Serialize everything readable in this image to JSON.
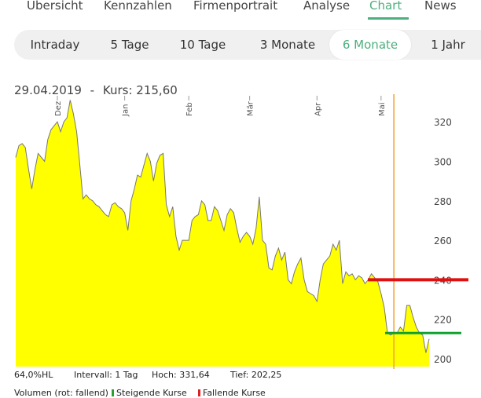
{
  "nav": {
    "tabs": [
      {
        "label": "Übersicht"
      },
      {
        "label": "Kennzahlen"
      },
      {
        "label": "Firmenportrait"
      },
      {
        "label": "Analyse"
      },
      {
        "label": "Chart",
        "active": true
      },
      {
        "label": "News"
      }
    ],
    "accent_color": "#4caf7d"
  },
  "ranges": [
    {
      "label": "Intraday"
    },
    {
      "label": "5 Tage"
    },
    {
      "label": "10 Tage"
    },
    {
      "label": "3 Monate"
    },
    {
      "label": "6 Monate",
      "active": true
    },
    {
      "label": "1 Jahr"
    }
  ],
  "quote": {
    "date": "29.04.2019",
    "separator": "-",
    "price_label": "Kurs:",
    "price": "215,60"
  },
  "stats": {
    "hl": "64,0%HL",
    "interval": "Intervall: 1 Tag",
    "high": "Hoch:  331,64",
    "low": "Tief:  202,25"
  },
  "legend": {
    "volume": "Volumen (rot: fallend)",
    "rising": "Steigende Kurse",
    "falling": "Fallende Kurse"
  },
  "chart_data": {
    "type": "area",
    "fill_color": "#ffff00",
    "line_color": "#777777",
    "y_ticks": [
      200,
      220,
      240,
      260,
      280,
      300,
      320
    ],
    "ylim": [
      196,
      334
    ],
    "month_labels": [
      {
        "label": "Dez",
        "x": 13
      },
      {
        "label": "Jan",
        "x": 34
      },
      {
        "label": "Feb",
        "x": 54
      },
      {
        "label": "Mär",
        "x": 73
      },
      {
        "label": "Apr",
        "x": 94
      },
      {
        "label": "Mai",
        "x": 114
      }
    ],
    "values": [
      [
        0,
        302
      ],
      [
        1,
        308
      ],
      [
        2,
        309
      ],
      [
        3,
        307
      ],
      [
        4,
        296
      ],
      [
        5,
        286
      ],
      [
        6,
        296
      ],
      [
        7,
        304
      ],
      [
        8,
        302
      ],
      [
        9,
        300
      ],
      [
        10,
        311
      ],
      [
        11,
        316
      ],
      [
        12,
        318
      ],
      [
        13,
        320
      ],
      [
        14,
        315
      ],
      [
        15,
        320
      ],
      [
        16,
        322
      ],
      [
        17,
        331
      ],
      [
        18,
        324
      ],
      [
        19,
        315
      ],
      [
        20,
        298
      ],
      [
        21,
        281
      ],
      [
        22,
        283
      ],
      [
        23,
        281
      ],
      [
        24,
        280
      ],
      [
        25,
        278
      ],
      [
        26,
        277
      ],
      [
        27,
        275
      ],
      [
        28,
        273
      ],
      [
        29,
        272
      ],
      [
        30,
        278
      ],
      [
        31,
        279
      ],
      [
        32,
        277
      ],
      [
        33,
        276
      ],
      [
        34,
        274
      ],
      [
        35,
        265
      ],
      [
        36,
        280
      ],
      [
        37,
        286
      ],
      [
        38,
        293
      ],
      [
        39,
        292
      ],
      [
        40,
        298
      ],
      [
        41,
        304
      ],
      [
        42,
        300
      ],
      [
        43,
        290
      ],
      [
        44,
        299
      ],
      [
        45,
        303
      ],
      [
        46,
        304
      ],
      [
        47,
        278
      ],
      [
        48,
        272
      ],
      [
        49,
        277
      ],
      [
        50,
        262
      ],
      [
        51,
        255
      ],
      [
        52,
        260
      ],
      [
        53,
        260
      ],
      [
        54,
        260
      ],
      [
        55,
        270
      ],
      [
        56,
        272
      ],
      [
        57,
        273
      ],
      [
        58,
        280
      ],
      [
        59,
        278
      ],
      [
        60,
        270
      ],
      [
        61,
        270
      ],
      [
        62,
        277
      ],
      [
        63,
        275
      ],
      [
        64,
        270
      ],
      [
        65,
        265
      ],
      [
        66,
        273
      ],
      [
        67,
        276
      ],
      [
        68,
        274
      ],
      [
        69,
        266
      ],
      [
        70,
        259
      ],
      [
        71,
        262
      ],
      [
        72,
        264
      ],
      [
        73,
        262
      ],
      [
        74,
        258
      ],
      [
        75,
        266
      ],
      [
        76,
        282
      ],
      [
        77,
        260
      ],
      [
        78,
        258
      ],
      [
        79,
        246
      ],
      [
        80,
        245
      ],
      [
        81,
        252
      ],
      [
        82,
        256
      ],
      [
        83,
        250
      ],
      [
        84,
        254
      ],
      [
        85,
        240
      ],
      [
        86,
        238
      ],
      [
        87,
        244
      ],
      [
        88,
        248
      ],
      [
        89,
        251
      ],
      [
        90,
        240
      ],
      [
        91,
        234
      ],
      [
        92,
        233
      ],
      [
        93,
        232
      ],
      [
        94,
        229
      ],
      [
        95,
        240
      ],
      [
        96,
        248
      ],
      [
        97,
        250
      ],
      [
        98,
        252
      ],
      [
        99,
        258
      ],
      [
        100,
        255
      ],
      [
        101,
        260
      ],
      [
        102,
        238
      ],
      [
        103,
        244
      ],
      [
        104,
        242
      ],
      [
        105,
        243
      ],
      [
        106,
        240
      ],
      [
        107,
        242
      ],
      [
        108,
        241
      ],
      [
        109,
        238
      ],
      [
        110,
        240
      ],
      [
        111,
        243
      ],
      [
        112,
        241
      ],
      [
        113,
        239
      ],
      [
        114,
        233
      ],
      [
        115,
        226
      ],
      [
        116,
        213
      ],
      [
        117,
        212
      ],
      [
        118,
        213
      ],
      [
        119,
        213
      ],
      [
        120,
        216
      ],
      [
        121,
        214
      ],
      [
        122,
        227
      ],
      [
        123,
        227
      ],
      [
        124,
        221
      ],
      [
        125,
        216
      ],
      [
        126,
        213
      ],
      [
        127,
        212
      ],
      [
        128,
        203
      ],
      [
        129,
        210
      ]
    ],
    "markers": {
      "red_level": 240,
      "green_level": 213,
      "vertical_x": 118
    },
    "axis_labels_position": "right"
  }
}
